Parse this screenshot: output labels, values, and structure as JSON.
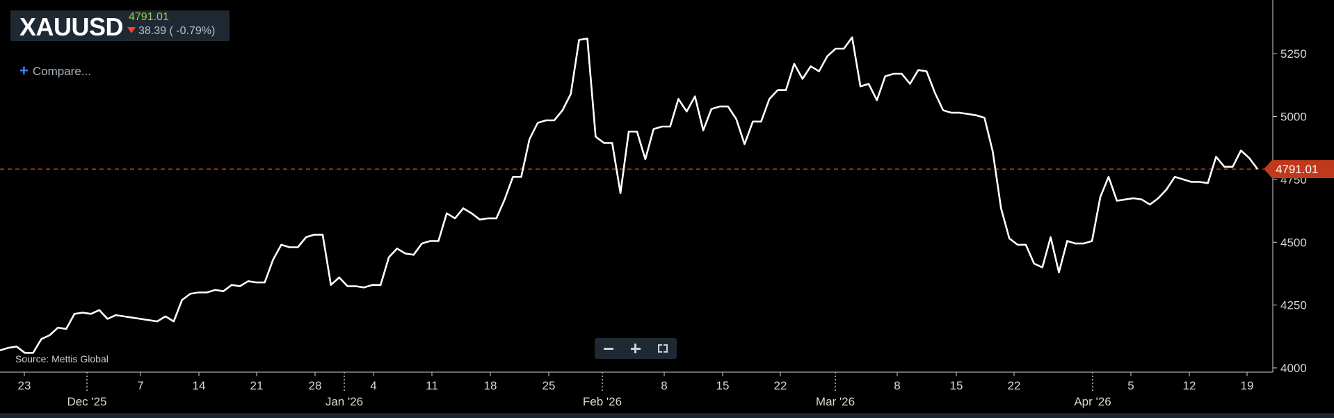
{
  "header": {
    "ticker": "XAUUSD",
    "price": "4791.01",
    "change": "38.39 ( -0.79%)"
  },
  "compare_label": "Compare...",
  "source": "Source: Mettis Global",
  "icons": {
    "compare": "plus-icon",
    "change_direction": "arrow-down-icon",
    "zoom_out": "minus-icon",
    "zoom_in": "plus-icon",
    "fullscreen": "expand-icon"
  },
  "colors": {
    "background": "#000000",
    "line": "#ffffff",
    "price_marker": "#c0391b",
    "price_up_text": "#9bd54a",
    "down_arrow": "#ff3b3b"
  },
  "chart_data": {
    "type": "line",
    "title": "XAUUSD",
    "xlabel": "",
    "ylabel": "",
    "ylim": [
      3975,
      5400
    ],
    "y_ticks": [
      "4000",
      "4250",
      "4500",
      "4750",
      "5000",
      "5250"
    ],
    "x_ticks": [
      "23",
      "Dec '25",
      "7",
      "14",
      "21",
      "28",
      "Jan '26",
      "4",
      "11",
      "18",
      "25",
      "Feb '26",
      "8",
      "15",
      "22",
      "Mar '26",
      "8",
      "15",
      "22",
      "Apr '26",
      "5",
      "12",
      "19"
    ],
    "grid": false,
    "current_price_line": 4791.01,
    "current_price_label": "4791.01",
    "series": [
      {
        "name": "XAUUSD",
        "values": [
          4070,
          4080,
          4085,
          4060,
          4060,
          4115,
          4130,
          4160,
          4155,
          4215,
          4220,
          4215,
          4230,
          4195,
          4210,
          4205,
          4200,
          4195,
          4190,
          4185,
          4205,
          4185,
          4270,
          4295,
          4300,
          4300,
          4310,
          4305,
          4330,
          4325,
          4345,
          4340,
          4340,
          4430,
          4490,
          4480,
          4480,
          4520,
          4530,
          4530,
          4330,
          4360,
          4325,
          4325,
          4320,
          4330,
          4330,
          4440,
          4475,
          4455,
          4450,
          4495,
          4505,
          4505,
          4615,
          4595,
          4635,
          4615,
          4590,
          4595,
          4595,
          4670,
          4760,
          4760,
          4910,
          4975,
          4985,
          4985,
          5025,
          5090,
          5305,
          5310,
          4920,
          4895,
          4895,
          4695,
          4940,
          4940,
          4830,
          4950,
          4960,
          4960,
          5070,
          5020,
          5080,
          4945,
          5030,
          5040,
          5040,
          4990,
          4890,
          4980,
          4980,
          5070,
          5105,
          5105,
          5210,
          5150,
          5200,
          5180,
          5240,
          5270,
          5270,
          5315,
          5120,
          5130,
          5065,
          5160,
          5170,
          5170,
          5130,
          5185,
          5180,
          5095,
          5025,
          5015,
          5015,
          5010,
          5005,
          4995,
          4860,
          4635,
          4515,
          4490,
          4490,
          4415,
          4400,
          4520,
          4380,
          4505,
          4495,
          4495,
          4505,
          4680,
          4760,
          4665,
          4670,
          4675,
          4670,
          4650,
          4675,
          4710,
          4760,
          4750,
          4740,
          4740,
          4735,
          4840,
          4800,
          4800,
          4865,
          4835,
          4791
        ]
      }
    ]
  }
}
